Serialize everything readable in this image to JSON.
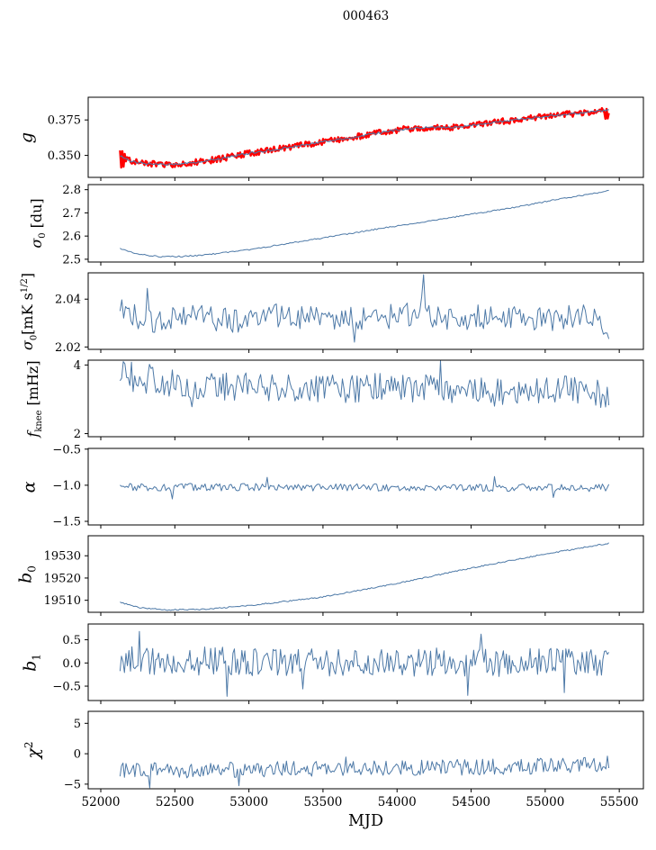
{
  "title": "000463",
  "xlabel": "MJD",
  "colors": {
    "background": "#ffffff",
    "axis": "#000000",
    "line_blue": "#4d79a7",
    "line_red": "#ff0000"
  },
  "chart_data": {
    "type": "line",
    "title": "000463",
    "xlabel": "MJD",
    "grid": false,
    "legend": null,
    "xlim": [
      51915,
      55663
    ],
    "x_data_range": [
      52130,
      55430
    ],
    "x_ticks": [
      {
        "v": 52000,
        "label": "52000"
      },
      {
        "v": 52500,
        "label": "52500"
      },
      {
        "v": 53000,
        "label": "53000"
      },
      {
        "v": 53500,
        "label": "53500"
      },
      {
        "v": 54000,
        "label": "54000"
      },
      {
        "v": 54500,
        "label": "54500"
      },
      {
        "v": 55000,
        "label": "55000"
      },
      {
        "v": 55500,
        "label": "55500"
      }
    ],
    "panels": [
      {
        "id": "g",
        "ylabel_parts": [
          {
            "t": "g",
            "it": true
          }
        ],
        "ylim": [
          0.3345,
          0.391
        ],
        "yticks": [
          {
            "v": 0.35,
            "label": "0.350"
          },
          {
            "v": 0.375,
            "label": "0.375"
          }
        ],
        "series": [
          {
            "name": "g-raw",
            "color": "#ff0000",
            "lw": 2.4,
            "n": 420,
            "amp": 0.0022,
            "seed": 11,
            "trend": [
              [
                52130,
                0.3495
              ],
              [
                52200,
                0.346
              ],
              [
                52300,
                0.3442
              ],
              [
                52450,
                0.3435
              ],
              [
                52600,
                0.3445
              ],
              [
                52800,
                0.3475
              ],
              [
                53000,
                0.3515
              ],
              [
                53200,
                0.3545
              ],
              [
                53500,
                0.3595
              ],
              [
                53800,
                0.3645
              ],
              [
                54000,
                0.368
              ],
              [
                54150,
                0.3695
              ],
              [
                54400,
                0.37
              ],
              [
                54600,
                0.3725
              ],
              [
                54850,
                0.3757
              ],
              [
                55100,
                0.3785
              ],
              [
                55300,
                0.3805
              ],
              [
                55430,
                0.382
              ]
            ],
            "spikes": [
              [
                52128,
                0.3535
              ],
              [
                52136,
                0.3415
              ],
              [
                52144,
                0.353
              ],
              [
                52152,
                0.342
              ],
              [
                52160,
                0.351
              ],
              [
                55408,
                0.3758
              ],
              [
                55416,
                0.3828
              ],
              [
                55424,
                0.376
              ]
            ]
          },
          {
            "name": "g-smooth",
            "color": "#4d79a7",
            "lw": 1.1,
            "n": 300,
            "amp": 0.0007,
            "seed": 12,
            "trend": [
              [
                52130,
                0.3495
              ],
              [
                52200,
                0.346
              ],
              [
                52300,
                0.3442
              ],
              [
                52450,
                0.3435
              ],
              [
                52600,
                0.3445
              ],
              [
                52800,
                0.3475
              ],
              [
                53000,
                0.3515
              ],
              [
                53200,
                0.3545
              ],
              [
                53500,
                0.3595
              ],
              [
                53800,
                0.3645
              ],
              [
                54000,
                0.368
              ],
              [
                54150,
                0.3695
              ],
              [
                54400,
                0.37
              ],
              [
                54600,
                0.3725
              ],
              [
                54850,
                0.3757
              ],
              [
                55100,
                0.3785
              ],
              [
                55300,
                0.3805
              ],
              [
                55430,
                0.382
              ]
            ],
            "spikes": []
          }
        ]
      },
      {
        "id": "sigma0-du",
        "ylabel_parts": [
          {
            "t": "σ",
            "it": true
          },
          {
            "t": "0",
            "sub": true
          },
          {
            "t": " [du]"
          }
        ],
        "ylim": [
          2.488,
          2.822
        ],
        "yticks": [
          {
            "v": 2.5,
            "label": "2.5"
          },
          {
            "v": 2.6,
            "label": "2.6"
          },
          {
            "v": 2.7,
            "label": "2.7"
          },
          {
            "v": 2.8,
            "label": "2.8"
          }
        ],
        "series": [
          {
            "name": "sigma0-du",
            "color": "#4d79a7",
            "lw": 1.0,
            "n": 300,
            "amp": 0.0028,
            "seed": 21,
            "trend": [
              [
                52130,
                2.545
              ],
              [
                52250,
                2.522
              ],
              [
                52400,
                2.511
              ],
              [
                52550,
                2.512
              ],
              [
                52700,
                2.518
              ],
              [
                53000,
                2.541
              ],
              [
                53300,
                2.572
              ],
              [
                53600,
                2.602
              ],
              [
                53900,
                2.634
              ],
              [
                54200,
                2.663
              ],
              [
                54500,
                2.694
              ],
              [
                54800,
                2.724
              ],
              [
                55100,
                2.76
              ],
              [
                55430,
                2.795
              ]
            ],
            "spikes": []
          }
        ]
      },
      {
        "id": "sigma0-mK",
        "ylabel_parts": [
          {
            "t": "σ",
            "it": true
          },
          {
            "t": "0",
            "sub": true
          },
          {
            "t": "[mK s"
          },
          {
            "t": "1/2",
            "sup": true
          },
          {
            "t": "]"
          }
        ],
        "ylim": [
          2.019,
          2.051
        ],
        "yticks": [
          {
            "v": 2.02,
            "label": "2.02"
          },
          {
            "v": 2.04,
            "label": "2.04"
          }
        ],
        "series": [
          {
            "name": "sigma0-mK",
            "color": "#4d79a7",
            "lw": 1.0,
            "n": 270,
            "amp": 0.0052,
            "seed": 31,
            "trend": [
              [
                52130,
                2.036
              ],
              [
                52350,
                2.0295
              ],
              [
                52600,
                2.034
              ],
              [
                52900,
                2.0305
              ],
              [
                53200,
                2.033
              ],
              [
                53500,
                2.0325
              ],
              [
                53800,
                2.0315
              ],
              [
                54100,
                2.034
              ],
              [
                54400,
                2.0315
              ],
              [
                54700,
                2.0335
              ],
              [
                55000,
                2.0315
              ],
              [
                55250,
                2.034
              ],
              [
                55430,
                2.0275
              ]
            ],
            "spikes": [
              [
                52310,
                2.0445
              ],
              [
                53710,
                2.022
              ],
              [
                54168,
                2.041
              ],
              [
                54180,
                2.0502
              ],
              [
                55420,
                2.0258
              ]
            ]
          }
        ]
      },
      {
        "id": "fknee",
        "ylabel_parts": [
          {
            "t": "f",
            "it": true
          },
          {
            "t": "knee",
            "sub": true
          },
          {
            "t": " [mHz]"
          }
        ],
        "ylim": [
          1.91,
          4.14
        ],
        "yticks": [
          {
            "v": 2,
            "label": "2"
          },
          {
            "v": 4,
            "label": "4"
          }
        ],
        "series": [
          {
            "name": "fknee",
            "color": "#4d79a7",
            "lw": 1.0,
            "n": 300,
            "amp": 0.42,
            "seed": 41,
            "trend": [
              [
                52130,
                3.7
              ],
              [
                52350,
                3.55
              ],
              [
                52600,
                3.4
              ],
              [
                53000,
                3.35
              ],
              [
                53500,
                3.3
              ],
              [
                54000,
                3.35
              ],
              [
                54400,
                3.3
              ],
              [
                54800,
                3.2
              ],
              [
                55100,
                3.3
              ],
              [
                55430,
                3.15
              ]
            ],
            "spikes": [
              [
                52210,
                4.08
              ],
              [
                52330,
                4.02
              ],
              [
                52620,
                2.78
              ],
              [
                54290,
                4.12
              ],
              [
                54660,
                2.8
              ],
              [
                55380,
                2.76
              ]
            ]
          }
        ]
      },
      {
        "id": "alpha",
        "ylabel_parts": [
          {
            "t": "α",
            "it": true
          }
        ],
        "ylim": [
          -1.55,
          -0.49
        ],
        "yticks": [
          {
            "v": -1.5,
            "label": "−1.5"
          },
          {
            "v": -1.0,
            "label": "−1.0"
          },
          {
            "v": -0.5,
            "label": "−0.5"
          }
        ],
        "series": [
          {
            "name": "alpha",
            "color": "#4d79a7",
            "lw": 1.0,
            "n": 300,
            "amp": 0.052,
            "seed": 51,
            "trend": [
              [
                52130,
                -1.025
              ],
              [
                55430,
                -1.035
              ]
            ],
            "spikes": [
              [
                52480,
                -1.19
              ],
              [
                53120,
                -0.89
              ],
              [
                54660,
                -0.88
              ],
              [
                55050,
                -1.17
              ]
            ]
          }
        ]
      },
      {
        "id": "b0",
        "ylabel_parts": [
          {
            "t": "b",
            "it": true
          },
          {
            "t": "0",
            "sub": true
          }
        ],
        "ylim": [
          19504.6,
          19539
        ],
        "yticks": [
          {
            "v": 19510,
            "label": "19510"
          },
          {
            "v": 19520,
            "label": "19520"
          },
          {
            "v": 19530,
            "label": "19530"
          }
        ],
        "series": [
          {
            "name": "b0",
            "color": "#4d79a7",
            "lw": 1.0,
            "n": 320,
            "amp": 0.28,
            "seed": 61,
            "trend": [
              [
                52130,
                19509.2
              ],
              [
                52250,
                19506.8
              ],
              [
                52450,
                19505.7
              ],
              [
                52700,
                19505.9
              ],
              [
                53000,
                19507.6
              ],
              [
                53500,
                19511.5
              ],
              [
                54000,
                19517.5
              ],
              [
                54500,
                19524.5
              ],
              [
                55000,
                19530.8
              ],
              [
                55430,
                19535.6
              ]
            ],
            "spikes": []
          }
        ]
      },
      {
        "id": "b1",
        "ylabel_parts": [
          {
            "t": "b",
            "it": true
          },
          {
            "t": "1",
            "sub": true
          }
        ],
        "ylim": [
          -0.81,
          0.84
        ],
        "yticks": [
          {
            "v": -0.5,
            "label": "−0.5"
          },
          {
            "v": 0.0,
            "label": "0.0"
          },
          {
            "v": 0.5,
            "label": "0.5"
          }
        ],
        "series": [
          {
            "name": "b1",
            "color": "#4d79a7",
            "lw": 1.0,
            "n": 330,
            "amp": 0.31,
            "seed": 71,
            "trend": [
              [
                52130,
                0.05
              ],
              [
                55430,
                0.0
              ]
            ],
            "spikes": [
              [
                52260,
                0.68
              ],
              [
                52850,
                -0.72
              ],
              [
                53360,
                -0.56
              ],
              [
                54480,
                -0.7
              ],
              [
                54570,
                0.62
              ],
              [
                55130,
                -0.64
              ]
            ]
          }
        ]
      },
      {
        "id": "chi2",
        "ylabel_parts": [
          {
            "t": "χ",
            "it": true
          },
          {
            "t": "2",
            "sup": true
          }
        ],
        "ylim": [
          -5.76,
          6.97
        ],
        "yticks": [
          {
            "v": -5,
            "label": "−5"
          },
          {
            "v": 0,
            "label": "0"
          },
          {
            "v": 5,
            "label": "5"
          }
        ],
        "series": [
          {
            "name": "chi2",
            "color": "#4d79a7",
            "lw": 1.0,
            "n": 330,
            "amp": 1.3,
            "seed": 81,
            "trend": [
              [
                52130,
                -2.6
              ],
              [
                52700,
                -2.75
              ],
              [
                53200,
                -2.5
              ],
              [
                53700,
                -2.35
              ],
              [
                54200,
                -2.3
              ],
              [
                54700,
                -2.15
              ],
              [
                55100,
                -1.95
              ],
              [
                55430,
                -1.55
              ]
            ],
            "spikes": [
              [
                52330,
                -5.6
              ],
              [
                52930,
                -5.25
              ],
              [
                53650,
                -0.55
              ]
            ]
          }
        ]
      }
    ]
  }
}
